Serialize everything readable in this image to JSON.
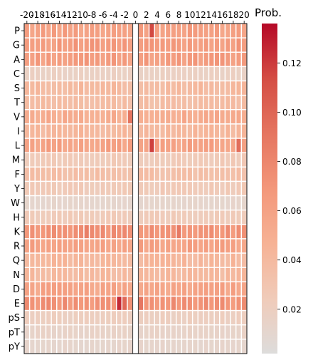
{
  "chart_data": {
    "type": "heatmap",
    "xlabel": "",
    "ylabel": "",
    "x_positions": [
      -20,
      -19,
      -18,
      -17,
      -16,
      -15,
      -14,
      -13,
      -12,
      -11,
      -10,
      -9,
      -8,
      -7,
      -6,
      -5,
      -4,
      -3,
      -2,
      -1,
      0,
      1,
      2,
      3,
      4,
      5,
      6,
      7,
      8,
      9,
      10,
      11,
      12,
      13,
      14,
      15,
      16,
      17,
      18,
      19,
      20
    ],
    "x_tick_labels": [
      "-20",
      "-18",
      "-16",
      "-14",
      "-12",
      "-10",
      "-8",
      "-6",
      "-4",
      "-2",
      "0",
      "2",
      "4",
      "6",
      "8",
      "10",
      "12",
      "14",
      "16",
      "18",
      "20"
    ],
    "x_tick_values": [
      -20,
      -18,
      -16,
      -14,
      -12,
      -10,
      -8,
      -6,
      -4,
      -2,
      0,
      2,
      4,
      6,
      8,
      10,
      12,
      14,
      16,
      18,
      20
    ],
    "rows": [
      "P",
      "G",
      "A",
      "C",
      "S",
      "T",
      "V",
      "I",
      "L",
      "M",
      "F",
      "Y",
      "W",
      "H",
      "K",
      "R",
      "Q",
      "N",
      "D",
      "E",
      "pS",
      "pT",
      "pY"
    ],
    "row_base_values": [
      0.062,
      0.065,
      0.064,
      0.018,
      0.04,
      0.037,
      0.052,
      0.042,
      0.06,
      0.025,
      0.035,
      0.025,
      0.012,
      0.024,
      0.071,
      0.06,
      0.042,
      0.04,
      0.058,
      0.072,
      0.02,
      0.015,
      0.012
    ],
    "special_cells": [
      {
        "row": "P",
        "x": 3,
        "value": 0.115
      },
      {
        "row": "V",
        "x": -1,
        "value": 0.092
      },
      {
        "row": "L",
        "x": 3,
        "value": 0.118
      },
      {
        "row": "L",
        "x": 19,
        "value": 0.095
      },
      {
        "row": "E",
        "x": -3,
        "value": 0.125
      },
      {
        "row": "E",
        "x": -2,
        "value": 0.098
      },
      {
        "row": "E",
        "x": 1,
        "value": 0.09
      },
      {
        "row": "K",
        "x": -9,
        "value": 0.085
      },
      {
        "row": "K",
        "x": 8,
        "value": 0.088
      }
    ],
    "position_zero_blank": true,
    "colorbar": {
      "title": "Prob.",
      "vmin": 0.002,
      "vmax": 0.136,
      "ticks": [
        0.02,
        0.04,
        0.06,
        0.08,
        0.1,
        0.12
      ],
      "tick_labels": [
        "0.02",
        "0.04",
        "0.06",
        "0.08",
        "0.10",
        "0.12"
      ],
      "colormap": "coolwarm-white-to-red",
      "color_stops": [
        "#dddcdb",
        "#f0cbb9",
        "#f6b295",
        "#f3977a",
        "#e57560",
        "#d44d44",
        "#b50927"
      ]
    },
    "grid": true,
    "cell_border_color": "#ffffff"
  }
}
